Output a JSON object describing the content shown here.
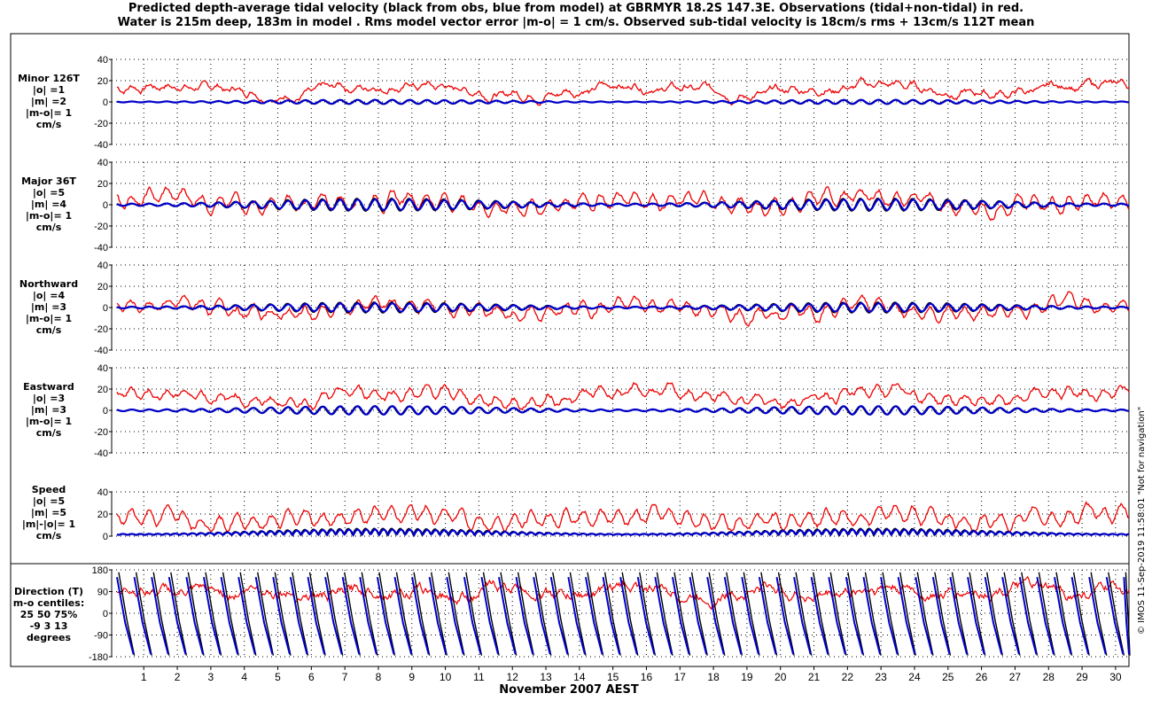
{
  "title": {
    "line1": "Predicted depth-average tidal velocity (black from obs, blue from model) at GBRMYR 18.2S 147.3E. Observations (tidal+non-tidal) in red.",
    "line2": "Water is 215m deep, 183m in model . Rms model vector error |m-o| = 1 cm/s. Observed sub-tidal velocity is 18cm/s rms + 13cm/s 112T mean"
  },
  "xlabel": "November 2007 AEST",
  "copyright": "© IMOS 11-Sep-2019 11:58:01  \"Not for navigation\"",
  "colors": {
    "observed": "#ee0000",
    "tidal_obs": "#000000",
    "model": "#0000cc"
  },
  "panels": [
    {
      "lines": [
        "Minor 126T",
        "|o| =1",
        "|m| =2",
        "|m-o|= 1",
        "cm/s"
      ]
    },
    {
      "lines": [
        "Major 36T",
        "|o| =5",
        "|m| =4",
        "|m-o|= 1",
        "cm/s"
      ]
    },
    {
      "lines": [
        "Northward",
        "|o| =4",
        "|m| =3",
        "|m-o|= 1",
        "cm/s"
      ]
    },
    {
      "lines": [
        "Eastward",
        "|o| =3",
        "|m| =3",
        "|m-o|= 1",
        "cm/s"
      ]
    },
    {
      "lines": [
        "Speed",
        "|o| =5",
        "|m| =5",
        "|m|-|o|= 1",
        "cm/s"
      ]
    },
    {
      "lines": [
        "Direction (T)",
        "m-o centiles:",
        "25  50  75%",
        "-9   3  13",
        "degrees"
      ]
    }
  ],
  "chart_data": {
    "type": "line",
    "x": {
      "label": "November 2007 AEST",
      "range": [
        0.2,
        30.4
      ],
      "ticks": [
        "1",
        "2",
        "3",
        "4",
        "5",
        "6",
        "7",
        "8",
        "9",
        "10",
        "11",
        "12",
        "13",
        "14",
        "15",
        "16",
        "17",
        "18",
        "19",
        "20",
        "21",
        "22",
        "23",
        "24",
        "25",
        "26",
        "27",
        "28",
        "29",
        "30"
      ]
    },
    "panels": [
      {
        "name": "Minor 126T",
        "ylim": [
          -40,
          40
        ],
        "yticks": [
          "40",
          "20",
          "0",
          "-20",
          "-40"
        ],
        "observed_mean": 12,
        "observed_ampl": 8,
        "tidal_amp": 2,
        "model_amp": 2
      },
      {
        "name": "Major 36T",
        "ylim": [
          -40,
          40
        ],
        "yticks": [
          "40",
          "20",
          "0",
          "-20",
          "-40"
        ],
        "observed_mean": 3,
        "observed_ampl": 9,
        "tidal_amp": 6,
        "model_amp": 5
      },
      {
        "name": "Northward",
        "ylim": [
          -40,
          40
        ],
        "yticks": [
          "40",
          "20",
          "0",
          "-20",
          "-40"
        ],
        "observed_mean": -2,
        "observed_ampl": 8,
        "tidal_amp": 5,
        "model_amp": 4
      },
      {
        "name": "Eastward",
        "ylim": [
          -40,
          40
        ],
        "yticks": [
          "40",
          "20",
          "0",
          "-20",
          "-40"
        ],
        "observed_mean": 13,
        "observed_ampl": 8,
        "tidal_amp": 4,
        "model_amp": 4
      },
      {
        "name": "Speed",
        "ylim": [
          0,
          40
        ],
        "yticks": [
          "40",
          "20",
          "0"
        ],
        "observed_mean": 17,
        "observed_ampl": 6,
        "tidal_amp": 6,
        "model_amp": 5
      },
      {
        "name": "Direction (T)",
        "ylim": [
          -180,
          180
        ],
        "yticks": [
          "180",
          "90",
          "0",
          "-90",
          "-180"
        ],
        "observed_mean": 90,
        "observed_ampl": 20
      }
    ]
  }
}
